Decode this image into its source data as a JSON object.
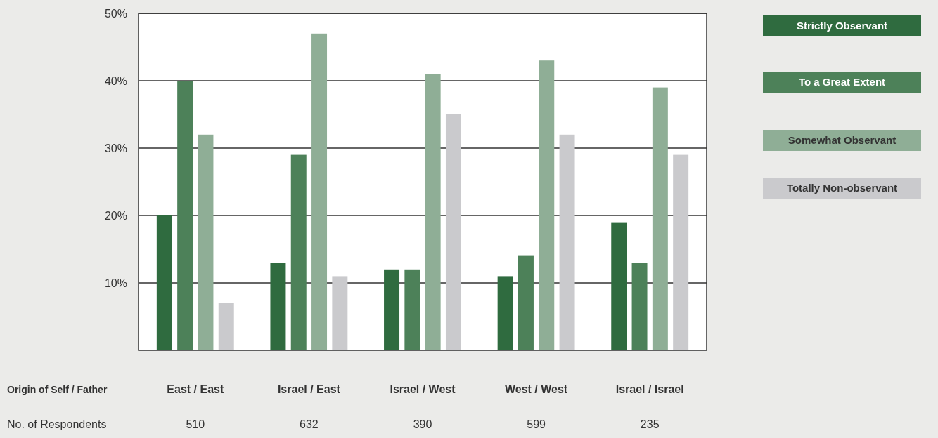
{
  "chart_data": {
    "type": "bar",
    "xlabel": "Origin of Self / Father",
    "categories": [
      "East / East",
      "Israel / East",
      "Israel / West",
      "West / West",
      "Israel / Israel"
    ],
    "series": [
      {
        "name": "Strictly Observant",
        "color": "#2f6b3f",
        "values": [
          20,
          13,
          12,
          11,
          19
        ]
      },
      {
        "name": "To a Great Extent",
        "color": "#4d8159",
        "values": [
          40,
          29,
          12,
          14,
          13
        ]
      },
      {
        "name": "Somewhat Observant",
        "color": "#8fae96",
        "values": [
          32,
          47,
          41,
          43,
          39
        ]
      },
      {
        "name": "Totally Non-observant",
        "color": "#cacacd",
        "values": [
          7,
          11,
          35,
          32,
          29
        ]
      }
    ],
    "ylim": [
      0,
      50
    ],
    "yticks": [
      {
        "value": 10,
        "label": "10%"
      },
      {
        "value": 20,
        "label": "20%"
      },
      {
        "value": 30,
        "label": "30%"
      },
      {
        "value": 40,
        "label": "40%"
      },
      {
        "value": 50,
        "label": "50%"
      }
    ],
    "grid": "y",
    "legend": "right",
    "annotations": [
      "No. of Respondents",
      "510",
      "632",
      "390",
      "599",
      "235"
    ]
  }
}
